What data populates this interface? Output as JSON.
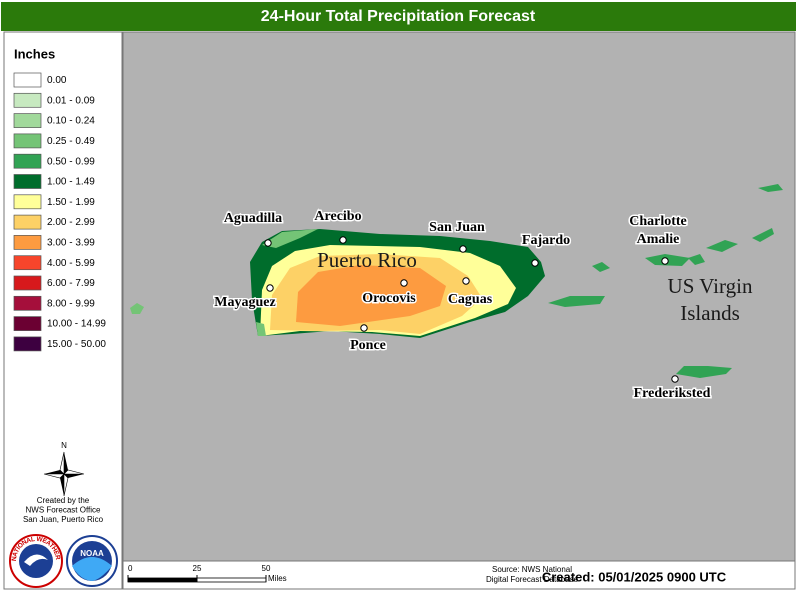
{
  "title": "24-Hour Total Precipitation Forecast",
  "legend": {
    "title": "Inches",
    "items": [
      {
        "label": "0.00",
        "color": "#ffffff"
      },
      {
        "label": "0.01 - 0.09",
        "color": "#c7e9c0"
      },
      {
        "label": "0.10 - 0.24",
        "color": "#a1d99b"
      },
      {
        "label": "0.25 - 0.49",
        "color": "#74c476"
      },
      {
        "label": "0.50 - 0.99",
        "color": "#31a354"
      },
      {
        "label": "1.00 - 1.49",
        "color": "#006d2c"
      },
      {
        "label": "1.50 - 1.99",
        "color": "#ffff99"
      },
      {
        "label": "2.00 - 2.99",
        "color": "#fdd166"
      },
      {
        "label": "3.00 - 3.99",
        "color": "#fd9b40"
      },
      {
        "label": "4.00 - 5.99",
        "color": "#f7452b"
      },
      {
        "label": "6.00 - 7.99",
        "color": "#d7191c"
      },
      {
        "label": "8.00 - 9.99",
        "color": "#a50f3b"
      },
      {
        "label": "10.00 - 14.99",
        "color": "#6b0032"
      },
      {
        "label": "15.00 - 50.00",
        "color": "#3d0040"
      }
    ]
  },
  "north_label": "N",
  "credit": [
    "Created by the",
    "NWS Forecast Office",
    "San Juan, Puerto Rico"
  ],
  "logos": {
    "nws": "NATIONAL WEATHER SERVICE",
    "noaa": "NOAA"
  },
  "map": {
    "cities": [
      {
        "lines": [
          "Aguadilla"
        ]
      },
      {
        "lines": [
          "Arecibo"
        ]
      },
      {
        "lines": [
          "San Juan"
        ]
      },
      {
        "lines": [
          "Fajardo"
        ]
      },
      {
        "lines": [
          "Mayaguez"
        ]
      },
      {
        "lines": [
          "Orocovis"
        ]
      },
      {
        "lines": [
          "Caguas"
        ]
      },
      {
        "lines": [
          "Ponce"
        ]
      },
      {
        "lines": [
          "Charlotte",
          "Amalie"
        ]
      },
      {
        "lines": [
          "Frederiksted"
        ]
      }
    ],
    "regions": [
      {
        "lines": [
          "Puerto Rico"
        ]
      },
      {
        "lines": [
          "US Virgin",
          "Islands"
        ]
      }
    ]
  },
  "scale": {
    "ticks": [
      0,
      25,
      50
    ],
    "unit": "Miles"
  },
  "source": [
    "Source: NWS National",
    "Digital Forecast Database"
  ],
  "created": "Created: 05/01/2025 0900 UTC"
}
